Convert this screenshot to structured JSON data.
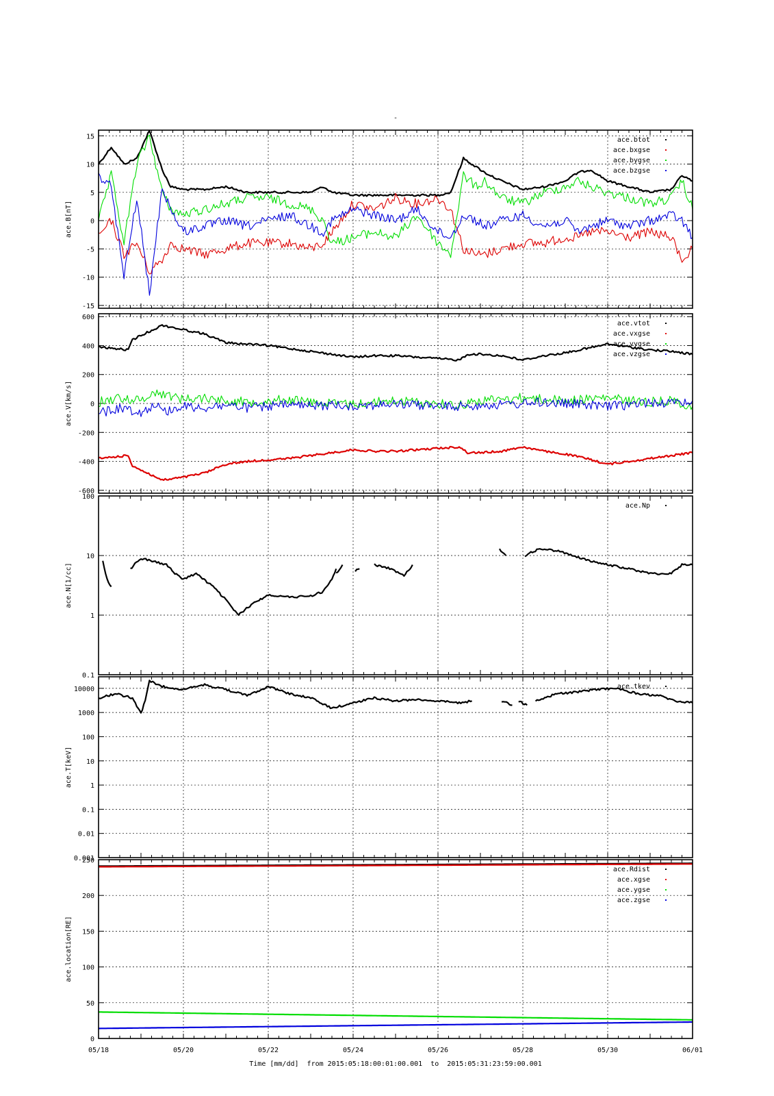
{
  "page_title": "-",
  "time_axis": {
    "title": "Time [mm/dd]  from 2015:05:18:00:01:00.001  to  2015:05:31:23:59:00.001",
    "tick_labels": [
      "05/18",
      "05/20",
      "05/22",
      "05/24",
      "05/26",
      "05/28",
      "05/30",
      "06/01"
    ],
    "tick_days": [
      0,
      2,
      4,
      6,
      8,
      10,
      12,
      14
    ]
  },
  "colors": {
    "black": "#000000",
    "red": "#dd0000",
    "green": "#00dd00",
    "blue": "#0000dd"
  },
  "chart_data": [
    {
      "type": "scatter",
      "ylabel": "ace.B[nT]",
      "ylim": [
        -15.5,
        16
      ],
      "scale": "linear",
      "yticks": [
        -15,
        -10,
        -5,
        0,
        5,
        10,
        15
      ],
      "ytick_labels": [
        "-15",
        "-10",
        "-5",
        "0",
        "5",
        "10",
        "15"
      ],
      "legend_position": "top-right",
      "series": [
        {
          "name": "ace.btot",
          "color": "black",
          "dense": false,
          "x": [
            0,
            0.3,
            0.6,
            0.9,
            1.2,
            1.5,
            1.7,
            2.0,
            2.5,
            3.0,
            3.5,
            4.0,
            4.5,
            5.0,
            5.3,
            5.5,
            6.0,
            6.5,
            7.0,
            7.5,
            8.0,
            8.3,
            8.6,
            8.9,
            9.1,
            9.5,
            10.0,
            10.5,
            11.0,
            11.3,
            11.6,
            12.0,
            12.5,
            13.0,
            13.5,
            13.75,
            14.0
          ],
          "y": [
            10,
            13,
            10,
            11,
            16,
            9,
            6,
            5.5,
            5.5,
            6,
            5,
            5,
            5,
            5,
            6,
            5,
            4.5,
            4.5,
            4.5,
            4.5,
            4.5,
            5,
            11,
            9.5,
            8.5,
            7,
            5.5,
            6,
            7,
            8.5,
            9,
            7,
            6,
            5,
            5.5,
            8,
            7
          ]
        },
        {
          "name": "ace.bxgse",
          "color": "red",
          "dense": true,
          "x": [
            0,
            0.3,
            0.6,
            0.9,
            1.2,
            1.5,
            1.7,
            2.0,
            2.5,
            3.0,
            3.5,
            4.0,
            4.5,
            5.0,
            5.3,
            5.5,
            6.0,
            6.5,
            7.0,
            7.5,
            8.0,
            8.3,
            8.6,
            8.9,
            9.1,
            9.5,
            10.0,
            10.5,
            11.0,
            11.3,
            11.6,
            12.0,
            12.5,
            13.0,
            13.5,
            13.75,
            14.0
          ],
          "y": [
            -3,
            0,
            -6,
            -4,
            -9,
            -7,
            -4,
            -5,
            -6,
            -5,
            -4,
            -4,
            -4,
            -5,
            -4,
            -2,
            3,
            2,
            4,
            3,
            4,
            2,
            -5,
            -6,
            -6,
            -5,
            -4,
            -4,
            -3,
            -3,
            -2,
            -2,
            -3,
            -2,
            -3,
            -7,
            -5
          ]
        },
        {
          "name": "ace.bygse",
          "color": "green",
          "dense": true,
          "x": [
            0,
            0.3,
            0.6,
            0.9,
            1.2,
            1.5,
            1.7,
            2.0,
            2.5,
            3.0,
            3.5,
            4.0,
            4.5,
            5.0,
            5.3,
            5.5,
            6.0,
            6.5,
            7.0,
            7.5,
            8.0,
            8.3,
            8.6,
            8.9,
            9.1,
            9.5,
            10.0,
            10.5,
            11.0,
            11.3,
            11.6,
            12.0,
            12.5,
            13.0,
            13.5,
            13.75,
            14.0
          ],
          "y": [
            0,
            8,
            -4,
            10,
            15,
            5,
            2,
            1,
            2,
            3,
            4,
            4,
            3,
            2,
            0,
            -4,
            -3,
            -2,
            -3,
            1,
            -4,
            -6,
            8,
            6,
            7,
            4,
            3,
            5,
            6,
            7,
            6,
            5,
            4,
            3,
            4,
            7,
            2
          ]
        },
        {
          "name": "ace.bzgse",
          "color": "blue",
          "dense": true,
          "x": [
            0,
            0.3,
            0.6,
            0.9,
            1.2,
            1.5,
            1.7,
            2.0,
            2.5,
            3.0,
            3.5,
            4.0,
            4.5,
            5.0,
            5.3,
            5.5,
            6.0,
            6.5,
            7.0,
            7.5,
            8.0,
            8.3,
            8.6,
            8.9,
            9.1,
            9.5,
            10.0,
            10.5,
            11.0,
            11.3,
            11.6,
            12.0,
            12.5,
            13.0,
            13.5,
            13.75,
            14.0
          ],
          "y": [
            8,
            6,
            -10,
            4,
            -13,
            6,
            2,
            -2,
            -1,
            0,
            -1,
            0,
            1,
            -1,
            -2,
            0,
            2,
            1,
            0,
            2,
            -2,
            -3,
            1,
            0,
            -1,
            0,
            1,
            -1,
            0,
            -2,
            -1,
            0,
            -1,
            0,
            1,
            0,
            -3
          ]
        }
      ]
    },
    {
      "type": "scatter",
      "ylabel": "ace.V[km/s]",
      "ylim": [
        -620,
        620
      ],
      "scale": "linear",
      "yticks": [
        -600,
        -400,
        -200,
        0,
        200,
        400,
        600
      ],
      "ytick_labels": [
        "-600",
        "-400",
        "-200",
        "0",
        "200",
        "400",
        "600"
      ],
      "legend_position": "top-right",
      "series": [
        {
          "name": "ace.vtot",
          "color": "black",
          "dense": false,
          "x": [
            0,
            0.7,
            0.8,
            1.0,
            1.5,
            2.0,
            2.5,
            3.0,
            3.5,
            4.0,
            4.5,
            5.0,
            5.5,
            6.0,
            6.5,
            7.0,
            7.5,
            8.0,
            8.5,
            8.7,
            9.0,
            9.5,
            10.0,
            10.5,
            11.0,
            11.5,
            12.0,
            12.5,
            13.0,
            13.5,
            14.0
          ],
          "y": [
            390,
            370,
            440,
            470,
            540,
            510,
            480,
            420,
            410,
            400,
            380,
            360,
            340,
            320,
            330,
            330,
            320,
            310,
            300,
            340,
            340,
            330,
            300,
            330,
            350,
            380,
            410,
            390,
            370,
            360,
            340
          ]
        },
        {
          "name": "ace.vxgse",
          "color": "red",
          "dense": false,
          "x": [
            0,
            0.7,
            0.8,
            1.0,
            1.5,
            2.0,
            2.5,
            3.0,
            3.5,
            4.0,
            4.5,
            5.0,
            5.5,
            6.0,
            6.5,
            7.0,
            7.5,
            8.0,
            8.5,
            8.7,
            9.0,
            9.5,
            10.0,
            10.5,
            11.0,
            11.5,
            12.0,
            12.5,
            13.0,
            13.5,
            14.0
          ],
          "y": [
            -380,
            -360,
            -430,
            -460,
            -530,
            -510,
            -480,
            -420,
            -400,
            -390,
            -380,
            -360,
            -340,
            -320,
            -330,
            -330,
            -320,
            -310,
            -300,
            -340,
            -340,
            -330,
            -300,
            -330,
            -350,
            -380,
            -420,
            -400,
            -380,
            -360,
            -340
          ]
        },
        {
          "name": "ace.vygse",
          "color": "green",
          "dense": true,
          "x": [
            0,
            0.5,
            1.0,
            1.3,
            1.6,
            2.0,
            2.5,
            3.0,
            3.5,
            4.0,
            4.5,
            5.0,
            5.5,
            6.0,
            6.5,
            7.0,
            7.5,
            8.0,
            8.5,
            9.0,
            9.5,
            10.0,
            10.5,
            11.0,
            11.5,
            12.0,
            12.5,
            13.0,
            13.5,
            14.0
          ],
          "y": [
            10,
            40,
            20,
            80,
            60,
            30,
            40,
            20,
            10,
            20,
            30,
            10,
            0,
            -5,
            10,
            20,
            10,
            0,
            -10,
            20,
            30,
            40,
            30,
            20,
            30,
            40,
            20,
            10,
            20,
            -20
          ]
        },
        {
          "name": "ace.vzgse",
          "color": "blue",
          "dense": true,
          "x": [
            0,
            0.5,
            1.0,
            1.3,
            1.6,
            2.0,
            2.5,
            3.0,
            3.5,
            4.0,
            4.5,
            5.0,
            5.5,
            6.0,
            6.5,
            7.0,
            7.5,
            8.0,
            8.5,
            9.0,
            9.5,
            10.0,
            10.5,
            11.0,
            11.5,
            12.0,
            12.5,
            13.0,
            13.5,
            14.0
          ],
          "y": [
            -70,
            -30,
            -60,
            -10,
            -50,
            -20,
            -30,
            -10,
            -30,
            -20,
            -10,
            -20,
            -10,
            -15,
            -10,
            -5,
            -10,
            -20,
            -20,
            -10,
            -10,
            0,
            10,
            0,
            -10,
            -20,
            -10,
            10,
            0,
            20
          ]
        }
      ]
    },
    {
      "type": "scatter",
      "ylabel": "ace.N[1/cc]",
      "ylim": [
        0.1,
        100
      ],
      "scale": "log",
      "yticks": [
        0.1,
        1,
        10,
        100
      ],
      "ytick_labels": [
        "0.1",
        "1",
        "10",
        "100"
      ],
      "legend_position": "top-right",
      "series": [
        {
          "name": "ace.Np",
          "color": "black",
          "dense": false,
          "segments": [
            {
              "x": [
                0.1,
                0.2,
                0.3
              ],
              "y": [
                8,
                4,
                3
              ]
            },
            {
              "x": [
                0.75,
                1.0,
                1.3,
                1.6,
                1.8,
                2.0,
                2.3,
                2.7,
                3.0,
                3.3,
                3.6,
                4.0,
                4.5,
                5.0,
                5.3,
                5.5,
                5.6
              ],
              "y": [
                6,
                9,
                8,
                7,
                5,
                4,
                5,
                3,
                1.8,
                1,
                1.5,
                2.2,
                2,
                2.1,
                2.5,
                4,
                6
              ]
            },
            {
              "x": [
                5.6,
                5.75
              ],
              "y": [
                5,
                7
              ]
            },
            {
              "x": [
                6.05,
                6.15
              ],
              "y": [
                5.5,
                6
              ]
            },
            {
              "x": [
                6.5,
                6.9,
                7.2,
                7.4
              ],
              "y": [
                7,
                6,
                4.5,
                7
              ]
            },
            {
              "x": [
                9.45,
                9.6
              ],
              "y": [
                13,
                10
              ]
            },
            {
              "x": [
                10.05,
                10.4,
                10.8,
                11.2,
                11.6,
                12.0,
                12.5,
                13.0,
                13.5,
                13.75,
                14.0
              ],
              "y": [
                10,
                13,
                12,
                10,
                8,
                7,
                6,
                5,
                5,
                7,
                7
              ]
            }
          ]
        }
      ]
    },
    {
      "type": "scatter",
      "ylabel": "ace.T[keV]",
      "ylim": [
        0.001,
        30000
      ],
      "scale": "log",
      "yticks": [
        0.001,
        0.01,
        0.1,
        1,
        10,
        100,
        1000,
        10000
      ],
      "ytick_labels": [
        "0.001",
        "0.01",
        "0.1",
        "1",
        "10",
        "100",
        "1000",
        "10000"
      ],
      "legend_position": "top-right",
      "series": [
        {
          "name": "ace.tkev",
          "color": "black",
          "dense": false,
          "segments": [
            {
              "x": [
                0,
                0.4,
                0.8,
                1.0,
                1.1,
                1.2,
                1.5,
                2.0,
                2.5,
                3.0,
                3.5,
                4.0,
                4.5,
                5.0,
                5.5,
                6.0,
                6.5,
                7.0,
                7.5,
                8.0,
                8.5,
                8.8
              ],
              "y": [
                4000,
                6000,
                4000,
                900,
                3000,
                20000,
                12000,
                9000,
                14000,
                9000,
                5000,
                12000,
                6000,
                4000,
                1500,
                2500,
                4000,
                3000,
                3500,
                3000,
                2500,
                3000
              ]
            },
            {
              "x": [
                9.5,
                9.65,
                9.75
              ],
              "y": [
                3000,
                2500,
                2000
              ]
            },
            {
              "x": [
                9.9,
                10.1
              ],
              "y": [
                3000,
                2000
              ]
            },
            {
              "x": [
                10.3,
                10.8,
                11.3,
                11.7,
                12.2,
                12.7,
                13.2,
                13.6,
                14.0
              ],
              "y": [
                3000,
                6000,
                7000,
                9000,
                10000,
                6000,
                5000,
                3000,
                2500
              ]
            }
          ]
        }
      ]
    },
    {
      "type": "line",
      "ylabel": "ace.location[RE]",
      "ylim": [
        0,
        250
      ],
      "scale": "linear",
      "yticks": [
        0,
        50,
        100,
        150,
        200,
        250
      ],
      "ytick_labels": [
        "0",
        "50",
        "100",
        "150",
        "200",
        "250"
      ],
      "legend_position": "top-right",
      "series": [
        {
          "name": "ace.Rdist",
          "color": "black",
          "dense": false,
          "x": [
            0,
            14
          ],
          "y": [
            241,
            245
          ]
        },
        {
          "name": "ace.xgse",
          "color": "red",
          "dense": false,
          "x": [
            0,
            14
          ],
          "y": [
            240,
            244
          ]
        },
        {
          "name": "ace.ygse",
          "color": "green",
          "dense": false,
          "x": [
            0,
            14
          ],
          "y": [
            37,
            26
          ]
        },
        {
          "name": "ace.zgse",
          "color": "blue",
          "dense": false,
          "x": [
            0,
            14
          ],
          "y": [
            14,
            23
          ]
        }
      ]
    }
  ]
}
